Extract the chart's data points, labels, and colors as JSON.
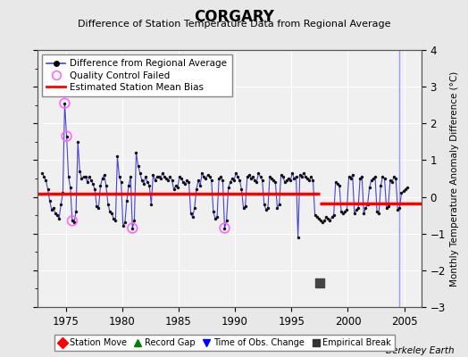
{
  "title": "CORGARY",
  "subtitle": "Difference of Station Temperature Data from Regional Average",
  "ylabel": "Monthly Temperature Anomaly Difference (°C)",
  "xlabel_years": [
    1975,
    1980,
    1985,
    1990,
    1995,
    2000,
    2005
  ],
  "xlim": [
    1972.5,
    2006.5
  ],
  "ylim": [
    -3.0,
    4.0
  ],
  "background_color": "#e8e8e8",
  "plot_bg_color": "#f0f0f0",
  "grid_color": "#ffffff",
  "line_color": "#4444cc",
  "dot_color": "#111111",
  "bias_color": "#ff0000",
  "qc_fail_color": "#ff66ff",
  "vertical_line_color": "#9999ff",
  "empirical_break_color": "#444444",
  "empirical_break_year": 1997.5,
  "empirical_break_value": -2.35,
  "bias_before_value": 0.08,
  "bias_after_value": -0.18,
  "bias_before_start": 1972.5,
  "bias_before_end": 1997.5,
  "bias_after_start": 1997.5,
  "bias_after_end": 2006.5,
  "obs_change_year": 2004.58,
  "berkeley_earth_text": "Berkeley Earth",
  "time_series": [
    1972.917,
    0.65,
    1973.083,
    0.55,
    1973.25,
    0.45,
    1973.417,
    0.2,
    1973.583,
    -0.1,
    1973.75,
    -0.35,
    1973.917,
    -0.3,
    1974.083,
    -0.45,
    1974.25,
    -0.5,
    1974.417,
    -0.6,
    1974.583,
    -0.2,
    1974.75,
    0.1,
    1974.917,
    2.55,
    1975.083,
    1.65,
    1975.25,
    0.55,
    1975.417,
    0.25,
    1975.583,
    -0.65,
    1975.75,
    -0.7,
    1975.917,
    -0.4,
    1976.083,
    1.5,
    1976.25,
    0.7,
    1976.417,
    0.5,
    1976.583,
    0.55,
    1976.75,
    0.55,
    1976.917,
    0.4,
    1977.083,
    0.55,
    1977.25,
    0.45,
    1977.417,
    0.35,
    1977.583,
    0.2,
    1977.75,
    -0.25,
    1977.917,
    -0.3,
    1978.083,
    0.3,
    1978.25,
    0.5,
    1978.417,
    0.6,
    1978.583,
    0.3,
    1978.75,
    -0.2,
    1978.917,
    -0.4,
    1979.083,
    -0.45,
    1979.25,
    -0.6,
    1979.417,
    -0.65,
    1979.583,
    1.1,
    1979.75,
    0.55,
    1979.917,
    0.4,
    1980.083,
    -0.8,
    1980.25,
    -0.7,
    1980.417,
    -0.1,
    1980.583,
    0.3,
    1980.75,
    0.55,
    1980.917,
    -0.85,
    1981.083,
    -0.65,
    1981.25,
    1.2,
    1981.417,
    0.85,
    1981.583,
    0.65,
    1981.75,
    0.45,
    1981.917,
    0.35,
    1982.083,
    0.55,
    1982.25,
    0.4,
    1982.417,
    0.3,
    1982.583,
    -0.2,
    1982.75,
    0.6,
    1982.917,
    0.45,
    1983.083,
    0.55,
    1983.25,
    0.55,
    1983.417,
    0.5,
    1983.583,
    0.65,
    1983.75,
    0.55,
    1983.917,
    0.5,
    1984.083,
    0.45,
    1984.25,
    0.55,
    1984.417,
    0.45,
    1984.583,
    0.2,
    1984.75,
    0.3,
    1984.917,
    0.25,
    1985.083,
    0.55,
    1985.25,
    0.5,
    1985.417,
    0.4,
    1985.583,
    0.35,
    1985.75,
    0.45,
    1985.917,
    0.4,
    1986.083,
    -0.45,
    1986.25,
    -0.55,
    1986.417,
    -0.3,
    1986.583,
    0.2,
    1986.75,
    0.45,
    1986.917,
    0.3,
    1987.083,
    0.65,
    1987.25,
    0.55,
    1987.417,
    0.5,
    1987.583,
    0.6,
    1987.75,
    0.55,
    1987.917,
    0.45,
    1988.083,
    -0.4,
    1988.25,
    -0.6,
    1988.417,
    -0.55,
    1988.583,
    0.5,
    1988.75,
    0.55,
    1988.917,
    0.45,
    1989.083,
    -0.85,
    1989.25,
    -0.65,
    1989.417,
    0.25,
    1989.583,
    0.4,
    1989.75,
    0.5,
    1989.917,
    0.45,
    1990.083,
    0.65,
    1990.25,
    0.55,
    1990.417,
    0.45,
    1990.583,
    0.2,
    1990.75,
    -0.3,
    1990.917,
    -0.25,
    1991.083,
    0.55,
    1991.25,
    0.6,
    1991.417,
    0.5,
    1991.583,
    0.55,
    1991.75,
    0.45,
    1991.917,
    0.4,
    1992.083,
    0.65,
    1992.25,
    0.55,
    1992.417,
    0.45,
    1992.583,
    -0.2,
    1992.75,
    -0.35,
    1992.917,
    -0.3,
    1993.083,
    0.55,
    1993.25,
    0.5,
    1993.417,
    0.45,
    1993.583,
    0.4,
    1993.75,
    -0.3,
    1993.917,
    -0.2,
    1994.083,
    0.6,
    1994.25,
    0.55,
    1994.417,
    0.4,
    1994.583,
    0.45,
    1994.75,
    0.5,
    1994.917,
    0.45,
    1995.083,
    0.65,
    1995.25,
    0.5,
    1995.417,
    0.55,
    1995.583,
    -1.1,
    1995.75,
    0.6,
    1995.917,
    0.55,
    1996.083,
    0.65,
    1996.25,
    0.55,
    1996.417,
    0.5,
    1996.583,
    0.45,
    1996.75,
    0.55,
    1996.917,
    0.45,
    1997.083,
    -0.5,
    1997.25,
    -0.55,
    1997.417,
    -0.6,
    1997.583,
    -0.65,
    1997.75,
    -0.7,
    1997.917,
    -0.65,
    1998.083,
    -0.55,
    1998.25,
    -0.6,
    1998.417,
    -0.65,
    1998.583,
    -0.55,
    1998.75,
    -0.5,
    1998.917,
    0.4,
    1999.083,
    0.35,
    1999.25,
    0.3,
    1999.417,
    -0.4,
    1999.583,
    -0.45,
    1999.75,
    -0.4,
    1999.917,
    -0.35,
    2000.083,
    0.55,
    2000.25,
    0.5,
    2000.417,
    0.6,
    2000.583,
    -0.45,
    2000.75,
    -0.35,
    2000.917,
    -0.3,
    2001.083,
    0.5,
    2001.25,
    0.55,
    2001.417,
    -0.45,
    2001.583,
    -0.3,
    2001.75,
    -0.2,
    2001.917,
    0.25,
    2002.083,
    0.45,
    2002.25,
    0.5,
    2002.417,
    0.55,
    2002.583,
    -0.4,
    2002.75,
    -0.45,
    2002.917,
    0.3,
    2003.083,
    0.55,
    2003.25,
    0.5,
    2003.417,
    -0.3,
    2003.583,
    -0.25,
    2003.75,
    0.45,
    2003.917,
    0.4,
    2004.083,
    0.55,
    2004.25,
    0.5,
    2004.417,
    -0.35,
    2004.583,
    -0.3,
    2004.75,
    0.1,
    2004.917,
    0.15,
    2005.083,
    0.2,
    2005.25,
    0.25
  ],
  "qc_fail_points": [
    [
      1974.917,
      2.55
    ],
    [
      1975.083,
      1.65
    ],
    [
      1975.583,
      -0.65
    ],
    [
      1980.917,
      -0.85
    ],
    [
      1989.083,
      -0.85
    ]
  ]
}
